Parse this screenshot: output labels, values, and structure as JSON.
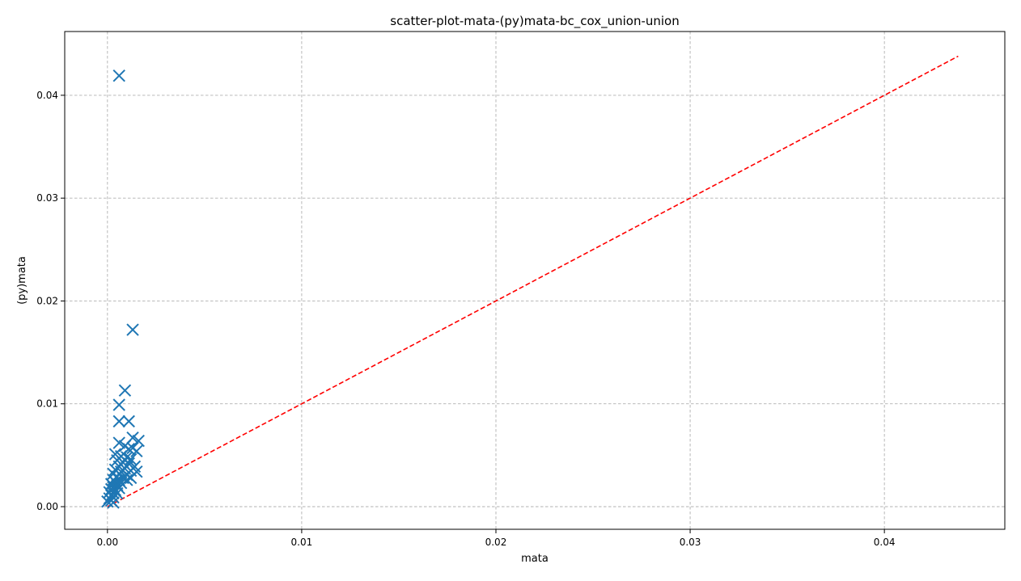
{
  "chart_data": {
    "type": "scatter",
    "title": "scatter-plot-mata-(py)mata-bc_cox_union-union",
    "xlabel": "mata",
    "ylabel": "(py)mata",
    "xlim": [
      -0.0022,
      0.0462
    ],
    "ylim": [
      -0.0022,
      0.0462
    ],
    "x_ticks": [
      0.0,
      0.01,
      0.02,
      0.03,
      0.04
    ],
    "x_tick_labels": [
      "0.00",
      "0.01",
      "0.02",
      "0.03",
      "0.04"
    ],
    "y_ticks": [
      0.0,
      0.01,
      0.02,
      0.03,
      0.04
    ],
    "y_tick_labels": [
      "0.00",
      "0.01",
      "0.02",
      "0.03",
      "0.04"
    ],
    "grid": true,
    "marker": "x",
    "marker_color": "#1f77b4",
    "reference_line": {
      "x": [
        0.0,
        0.0438
      ],
      "y": [
        0.0,
        0.0438
      ],
      "color": "#ff0000",
      "style": "dashed"
    },
    "points": [
      [
        0.0006,
        0.0419
      ],
      [
        0.0013,
        0.0172
      ],
      [
        0.0009,
        0.0113
      ],
      [
        0.0006,
        0.0099
      ],
      [
        0.0006,
        0.0083
      ],
      [
        0.0011,
        0.0083
      ],
      [
        0.0013,
        0.0067
      ],
      [
        0.0016,
        0.0064
      ],
      [
        0.0006,
        0.0062
      ],
      [
        0.0009,
        0.0059
      ],
      [
        0.0011,
        0.0056
      ],
      [
        0.0013,
        0.0057
      ],
      [
        0.0015,
        0.0054
      ],
      [
        0.0004,
        0.0051
      ],
      [
        0.0007,
        0.0049
      ],
      [
        0.001,
        0.0048
      ],
      [
        0.0012,
        0.0046
      ],
      [
        0.0005,
        0.0045
      ],
      [
        0.0008,
        0.0043
      ],
      [
        0.0011,
        0.0042
      ],
      [
        0.0014,
        0.0039
      ],
      [
        0.0006,
        0.0039
      ],
      [
        0.0009,
        0.0037
      ],
      [
        0.0004,
        0.0036
      ],
      [
        0.0012,
        0.0035
      ],
      [
        0.0015,
        0.0034
      ],
      [
        0.0007,
        0.0034
      ],
      [
        0.0003,
        0.0032
      ],
      [
        0.001,
        0.0031
      ],
      [
        0.0005,
        0.0029
      ],
      [
        0.0008,
        0.0028
      ],
      [
        0.0012,
        0.0028
      ],
      [
        0.0003,
        0.0026
      ],
      [
        0.0006,
        0.0026
      ],
      [
        0.001,
        0.0026
      ],
      [
        0.0004,
        0.0024
      ],
      [
        0.0007,
        0.0023
      ],
      [
        0.0002,
        0.0022
      ],
      [
        0.0005,
        0.0021
      ],
      [
        0.0003,
        0.0019
      ],
      [
        0.0006,
        0.0018
      ],
      [
        0.0002,
        0.0017
      ],
      [
        0.0004,
        0.0016
      ],
      [
        0.0001,
        0.0014
      ],
      [
        0.0003,
        0.0013
      ],
      [
        0.0005,
        0.0013
      ],
      [
        0.0002,
        0.0011
      ],
      [
        0.0003,
        0.0009
      ],
      [
        0.0001,
        0.0008
      ],
      [
        0.0002,
        0.0006
      ],
      [
        0.0,
        0.0005
      ],
      [
        0.0003,
        0.0004
      ]
    ]
  }
}
